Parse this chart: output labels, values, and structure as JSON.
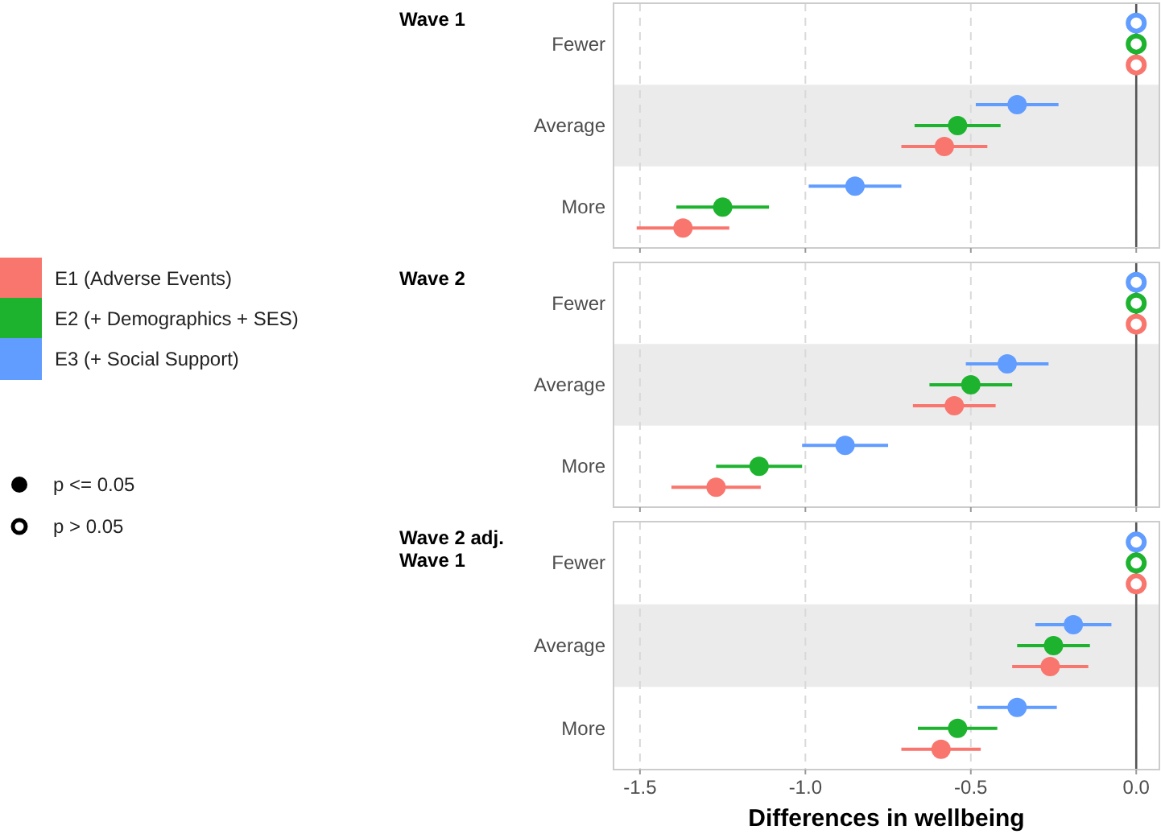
{
  "chart_data": [
    {
      "type": "scatter",
      "title": "Wave 1",
      "orientation": "horizontal",
      "categories": [
        "Fewer",
        "Average",
        "More"
      ],
      "xlim": [
        -1.58,
        0.07
      ],
      "xticks": [
        -1.5,
        -1,
        -0.5,
        0
      ],
      "tick_labels": "y",
      "grid": "x",
      "legend": "left",
      "marker": "circle",
      "ref_lines": [
        {
          "axis": "x",
          "value": 0,
          "color": "#555555"
        }
      ],
      "bands": [
        {
          "axis": "y",
          "from": "Average",
          "to": "Average",
          "color": "#ebebeb"
        }
      ],
      "annotations": [
        "p <= 0.05",
        "p > 0.05"
      ],
      "series": [
        {
          "name": "E1 (Adverse Events)",
          "color": "#f8766d",
          "values": [
            0,
            -0.58,
            -1.37
          ],
          "errors": [
            null,
            0.13,
            0.14
          ]
        },
        {
          "name": "E2 (+ Demographics + SES)",
          "color": "#1db32f",
          "values": [
            0,
            -0.54,
            -1.25
          ],
          "errors": [
            null,
            0.13,
            0.14
          ]
        },
        {
          "name": "E3 (+ Social Support)",
          "color": "#619cff",
          "values": [
            0,
            -0.36,
            -0.85
          ],
          "errors": [
            null,
            0.125,
            0.14
          ]
        }
      ]
    },
    {
      "type": "scatter",
      "title": "Wave 2",
      "orientation": "horizontal",
      "categories": [
        "Fewer",
        "Average",
        "More"
      ],
      "xlim": [
        -1.58,
        0.07
      ],
      "xticks": [
        -1.5,
        -1,
        -0.5,
        0
      ],
      "tick_labels": "y",
      "grid": "x",
      "marker": "circle",
      "ref_lines": [
        {
          "axis": "x",
          "value": 0,
          "color": "#555555"
        }
      ],
      "bands": [
        {
          "axis": "y",
          "from": "Average",
          "to": "Average",
          "color": "#ebebeb"
        }
      ],
      "series": [
        {
          "color": "#f8766d",
          "values": [
            0,
            -0.55,
            -1.27
          ],
          "errors": [
            null,
            0.125,
            0.135
          ]
        },
        {
          "color": "#1db32f",
          "values": [
            0,
            -0.5,
            -1.14
          ],
          "errors": [
            null,
            0.125,
            0.13
          ]
        },
        {
          "color": "#619cff",
          "values": [
            0,
            -0.39,
            -0.88
          ],
          "errors": [
            null,
            0.125,
            0.13
          ]
        }
      ]
    },
    {
      "type": "scatter",
      "title": "Wave 2 adj. Wave 1",
      "orientation": "horizontal",
      "xlabel": "Differences in wellbeing",
      "categories": [
        "Fewer",
        "Average",
        "More"
      ],
      "xlim": [
        -1.58,
        0.07
      ],
      "xticks": [
        {
          "value": -1.5,
          "label": "-1.5"
        },
        {
          "value": -1.0,
          "label": "-1.0"
        },
        {
          "value": -0.5,
          "label": "-0.5"
        },
        {
          "value": 0,
          "label": "0.0"
        }
      ],
      "grid": "x",
      "marker": "circle",
      "ref_lines": [
        {
          "axis": "x",
          "value": 0,
          "color": "#555555"
        }
      ],
      "bands": [
        {
          "axis": "y",
          "from": "Average",
          "to": "Average",
          "color": "#ebebeb"
        }
      ],
      "series": [
        {
          "color": "#f8766d",
          "values": [
            0,
            -0.26,
            -0.59
          ],
          "errors": [
            null,
            0.115,
            0.12
          ]
        },
        {
          "color": "#1db32f",
          "values": [
            0,
            -0.25,
            -0.54
          ],
          "errors": [
            null,
            0.11,
            0.12
          ]
        },
        {
          "color": "#619cff",
          "values": [
            0,
            -0.19,
            -0.36
          ],
          "errors": [
            null,
            0.115,
            0.12
          ]
        }
      ]
    }
  ]
}
